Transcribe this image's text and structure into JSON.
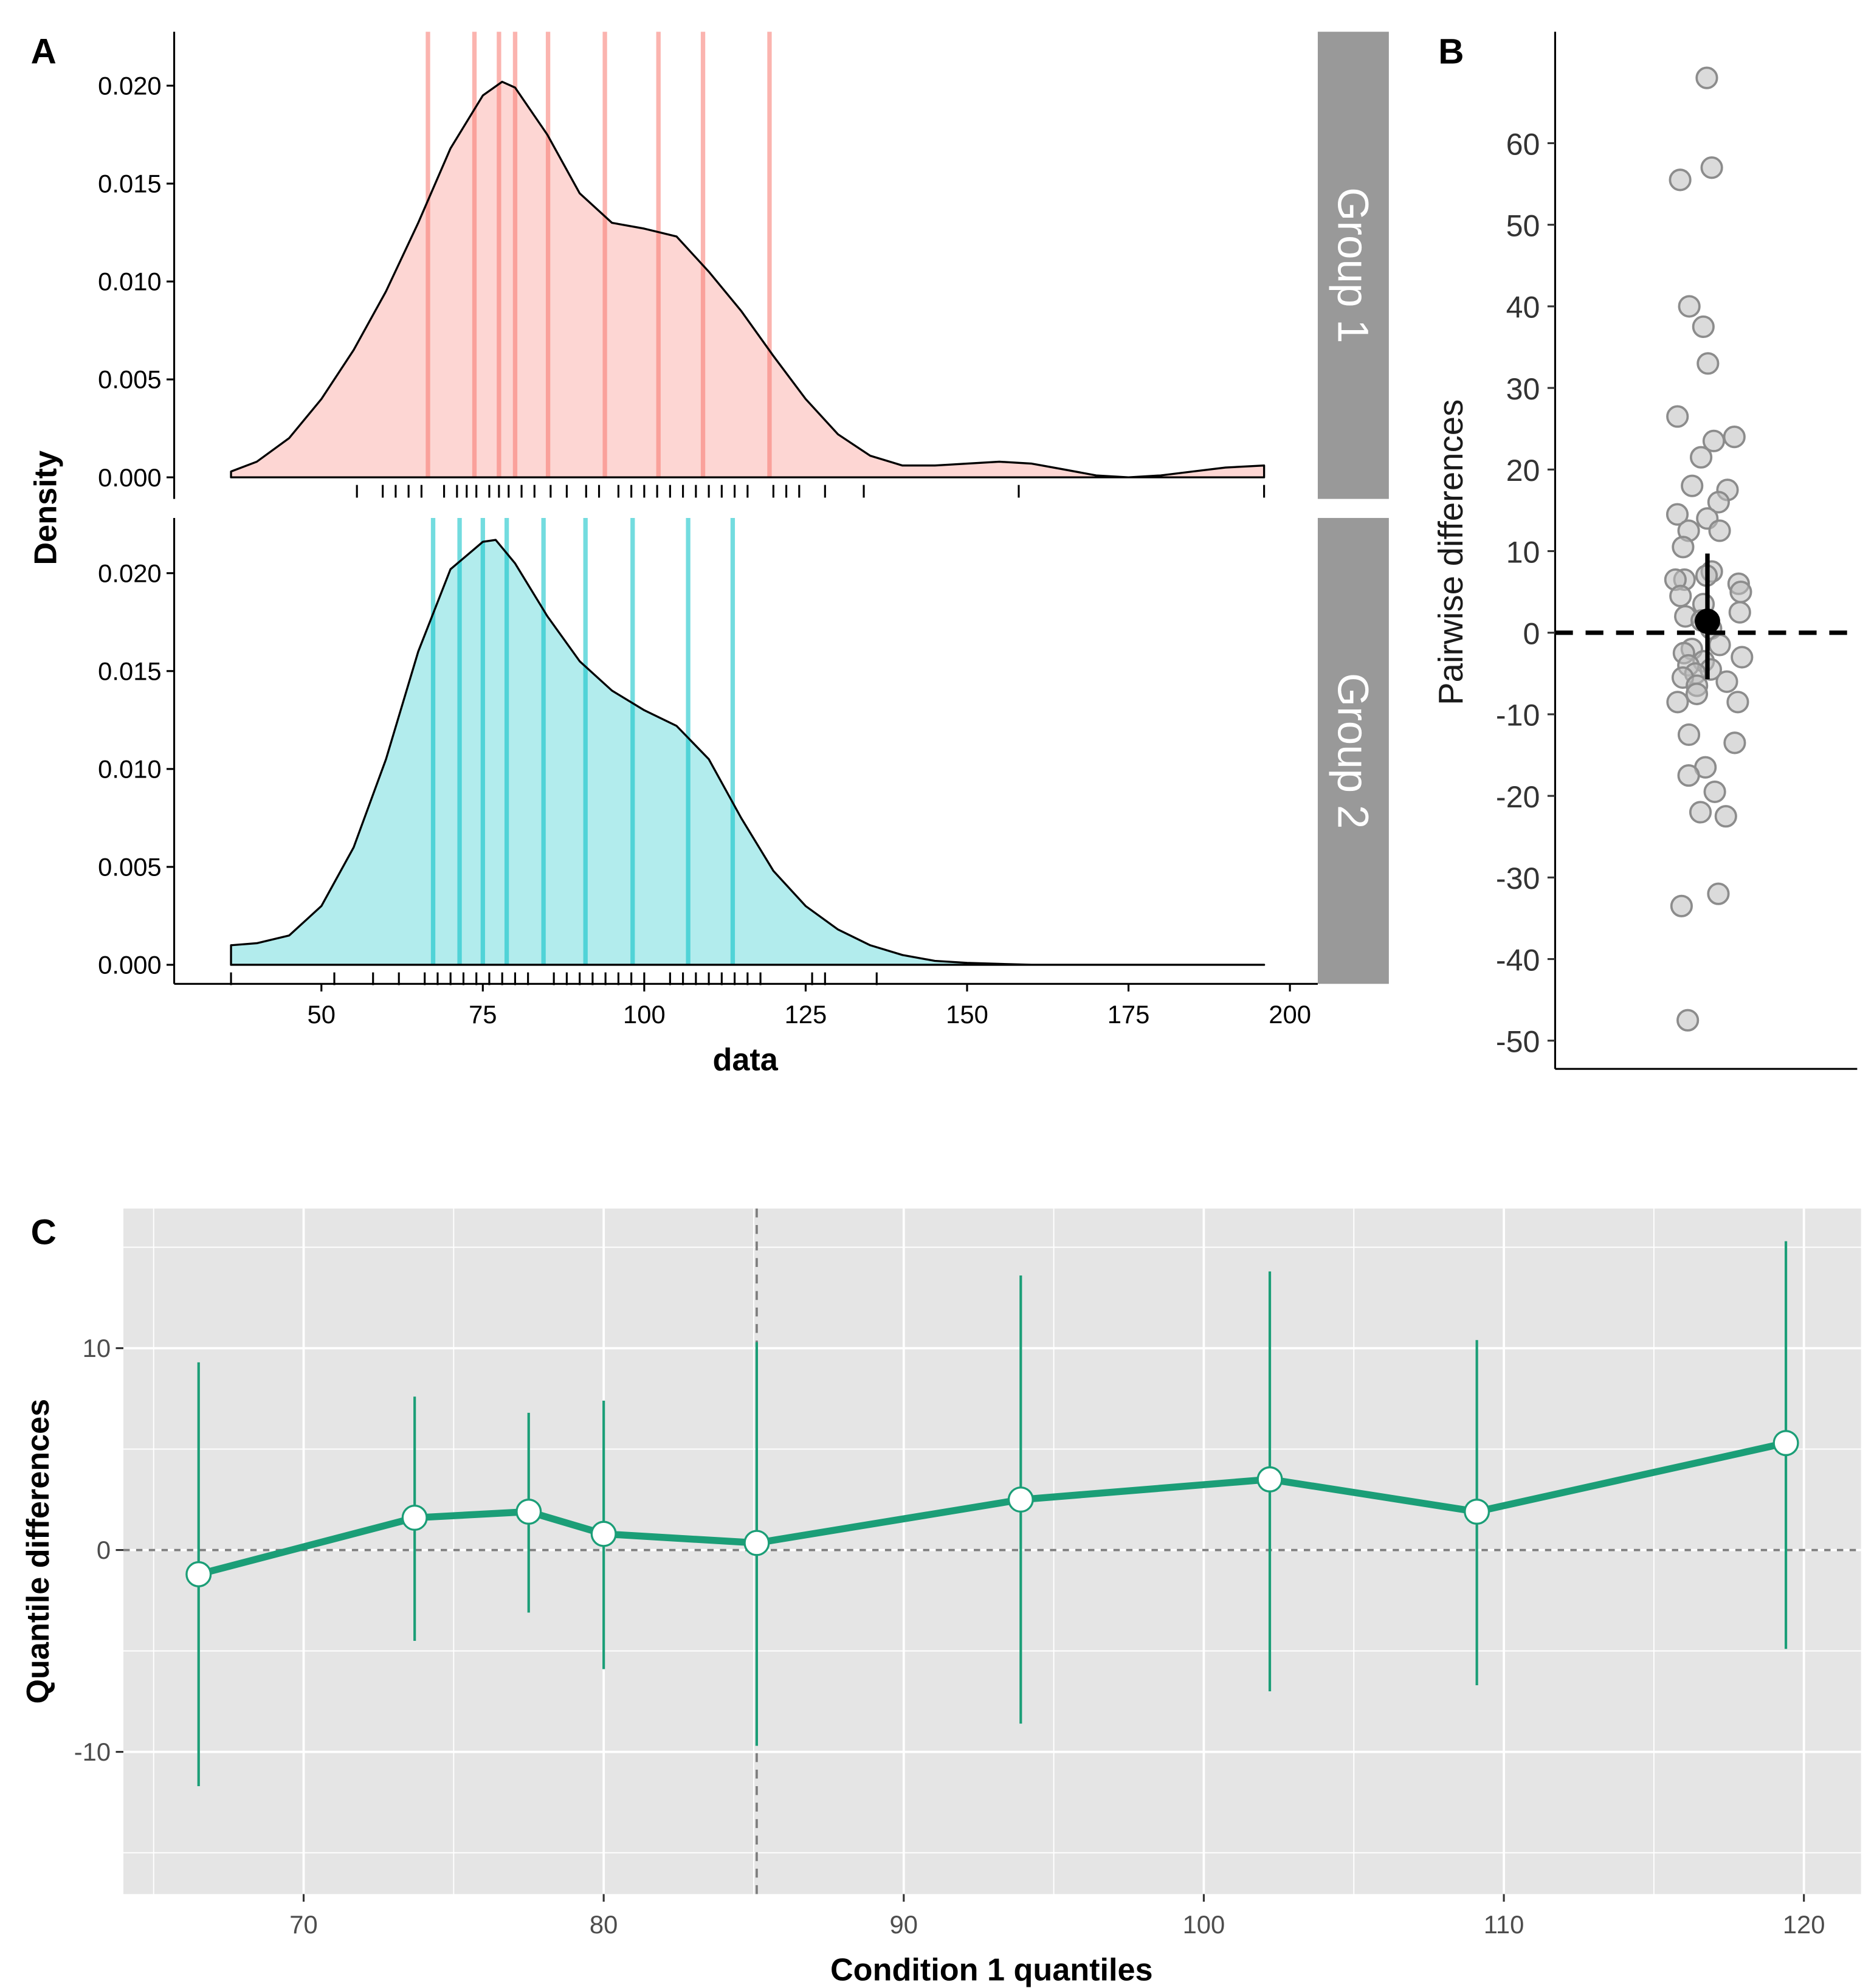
{
  "chart_data": [
    {
      "panel_label": "A",
      "type": "area",
      "xlabel": "data",
      "ylabel": "Density",
      "xlim": [
        28,
        205
      ],
      "ylim": [
        0,
        0.0225
      ],
      "x_ticks": [
        50,
        75,
        100,
        125,
        150,
        175,
        200
      ],
      "x_tick_labels": [
        "50",
        "75",
        "100",
        "125",
        "150",
        "175",
        "200"
      ],
      "y_ticks": [
        0,
        0.005,
        0.01,
        0.015,
        0.02
      ],
      "y_tick_labels": [
        "0.000",
        "0.005",
        "0.010",
        "0.015",
        "0.020"
      ],
      "grid": false,
      "facets": [
        {
          "strip_label": "Group 1",
          "fill": "#F8766D",
          "density_x": [
            36,
            40,
            45,
            50,
            55,
            60,
            65,
            70,
            75,
            78,
            80,
            85,
            90,
            95,
            100,
            105,
            110,
            115,
            120,
            125,
            130,
            135,
            140,
            145,
            150,
            155,
            160,
            165,
            170,
            175,
            180,
            185,
            190,
            196
          ],
          "density_y": [
            0.0003,
            0.0008,
            0.002,
            0.004,
            0.0065,
            0.0095,
            0.013,
            0.0168,
            0.0195,
            0.0202,
            0.0199,
            0.0175,
            0.0145,
            0.013,
            0.0127,
            0.0123,
            0.0105,
            0.0085,
            0.0062,
            0.004,
            0.0022,
            0.0011,
            0.0006,
            0.0006,
            0.0007,
            0.0008,
            0.0007,
            0.0004,
            0.0001,
            0.0,
            0.0001,
            0.0003,
            0.0005,
            0.0006
          ],
          "deciles": [
            66.5,
            73.7,
            77.5,
            80.0,
            85.1,
            93.9,
            102.2,
            109.1,
            119.4
          ],
          "rug": [
            55.5,
            59.5,
            61.5,
            63.5,
            65.5,
            69,
            71,
            72.5,
            74,
            76,
            77.5,
            79,
            81,
            83,
            85.5,
            88,
            91,
            93,
            96,
            98,
            100,
            102,
            104,
            106,
            108,
            110,
            112,
            114,
            116,
            120,
            122,
            124,
            128,
            134,
            158,
            196
          ]
        },
        {
          "strip_label": "Group 2",
          "fill": "#00BFC4",
          "density_x": [
            36,
            40,
            45,
            50,
            55,
            60,
            65,
            70,
            75,
            77,
            80,
            85,
            90,
            95,
            100,
            105,
            110,
            115,
            120,
            125,
            130,
            135,
            140,
            145,
            150,
            160,
            196
          ],
          "density_y": [
            0.001,
            0.0011,
            0.0015,
            0.003,
            0.006,
            0.0105,
            0.016,
            0.0202,
            0.0216,
            0.0217,
            0.0205,
            0.0178,
            0.0155,
            0.014,
            0.013,
            0.0122,
            0.0105,
            0.0075,
            0.0048,
            0.003,
            0.0018,
            0.001,
            0.0005,
            0.0002,
            0.0001,
            0.0,
            0.0
          ],
          "deciles": [
            67.3,
            71.4,
            75.0,
            78.7,
            84.4,
            90.9,
            98.2,
            106.8,
            113.7
          ],
          "rug": [
            36,
            52,
            58,
            62,
            66,
            68,
            70,
            72,
            74,
            76,
            78,
            80,
            82,
            86,
            88,
            90,
            92,
            94,
            96,
            98,
            100,
            104,
            106,
            108,
            110,
            112,
            114,
            116,
            118,
            126,
            128,
            136
          ]
        }
      ]
    },
    {
      "panel_label": "B",
      "type": "scatter",
      "ylabel": "Pairwise differences",
      "ylim": [
        -53,
        70
      ],
      "y_ticks": [
        -50,
        -40,
        -30,
        -20,
        -10,
        0,
        10,
        20,
        30,
        40,
        50,
        60
      ],
      "y_tick_labels": [
        "-50",
        "-40",
        "-30",
        "-20",
        "-10",
        "0",
        "10",
        "20",
        "30",
        "40",
        "50",
        "60"
      ],
      "reference_line": 0,
      "point_color": "#BEBEBE",
      "values": [
        68,
        57,
        55.5,
        40,
        37.5,
        33,
        26.5,
        24,
        23.5,
        21.5,
        18,
        17.5,
        16,
        14.5,
        14,
        12.5,
        12.5,
        10.5,
        7.5,
        7,
        6.5,
        6.5,
        6,
        5,
        4.5,
        3.5,
        2.5,
        2,
        1.5,
        0.5,
        -1.5,
        -2,
        -2.5,
        -3,
        -3.5,
        -4,
        -4.5,
        -5,
        -5.5,
        -6,
        -6.5,
        -7.5,
        -8.5,
        -8.5,
        -12.5,
        -13.5,
        -16.5,
        -17.5,
        -19.5,
        -22,
        -22.5,
        -32,
        -33.5,
        -47.5
      ],
      "summary": {
        "estimate": 1.4,
        "ci_low": -5.7,
        "ci_high": 9.7
      }
    },
    {
      "panel_label": "C",
      "type": "line",
      "xlabel": "Condition 1 quantiles",
      "ylabel": "Quantile differences",
      "xlim": [
        64,
        121.9
      ],
      "ylim": [
        -17,
        16.9
      ],
      "x_ticks": [
        70,
        80,
        90,
        100,
        110,
        120
      ],
      "x_tick_labels": [
        "70",
        "80",
        "90",
        "100",
        "110",
        "120"
      ],
      "y_ticks": [
        -10,
        0,
        10
      ],
      "y_tick_labels": [
        "-10",
        "0",
        "10"
      ],
      "grid": true,
      "median_line": 85.1,
      "color": "#1B9E77",
      "x": [
        66.5,
        73.7,
        77.5,
        80.0,
        85.1,
        93.9,
        102.2,
        109.1,
        119.4
      ],
      "y": [
        -1.2,
        1.6,
        1.9,
        0.8,
        0.35,
        2.5,
        3.5,
        1.9,
        5.3
      ],
      "ci_low": [
        -11.7,
        -4.5,
        -3.1,
        -5.9,
        -9.7,
        -8.6,
        -7.0,
        -6.7,
        -4.9
      ],
      "ci_high": [
        9.3,
        7.6,
        6.8,
        7.4,
        10.3,
        13.6,
        13.8,
        10.4,
        15.3
      ]
    }
  ]
}
